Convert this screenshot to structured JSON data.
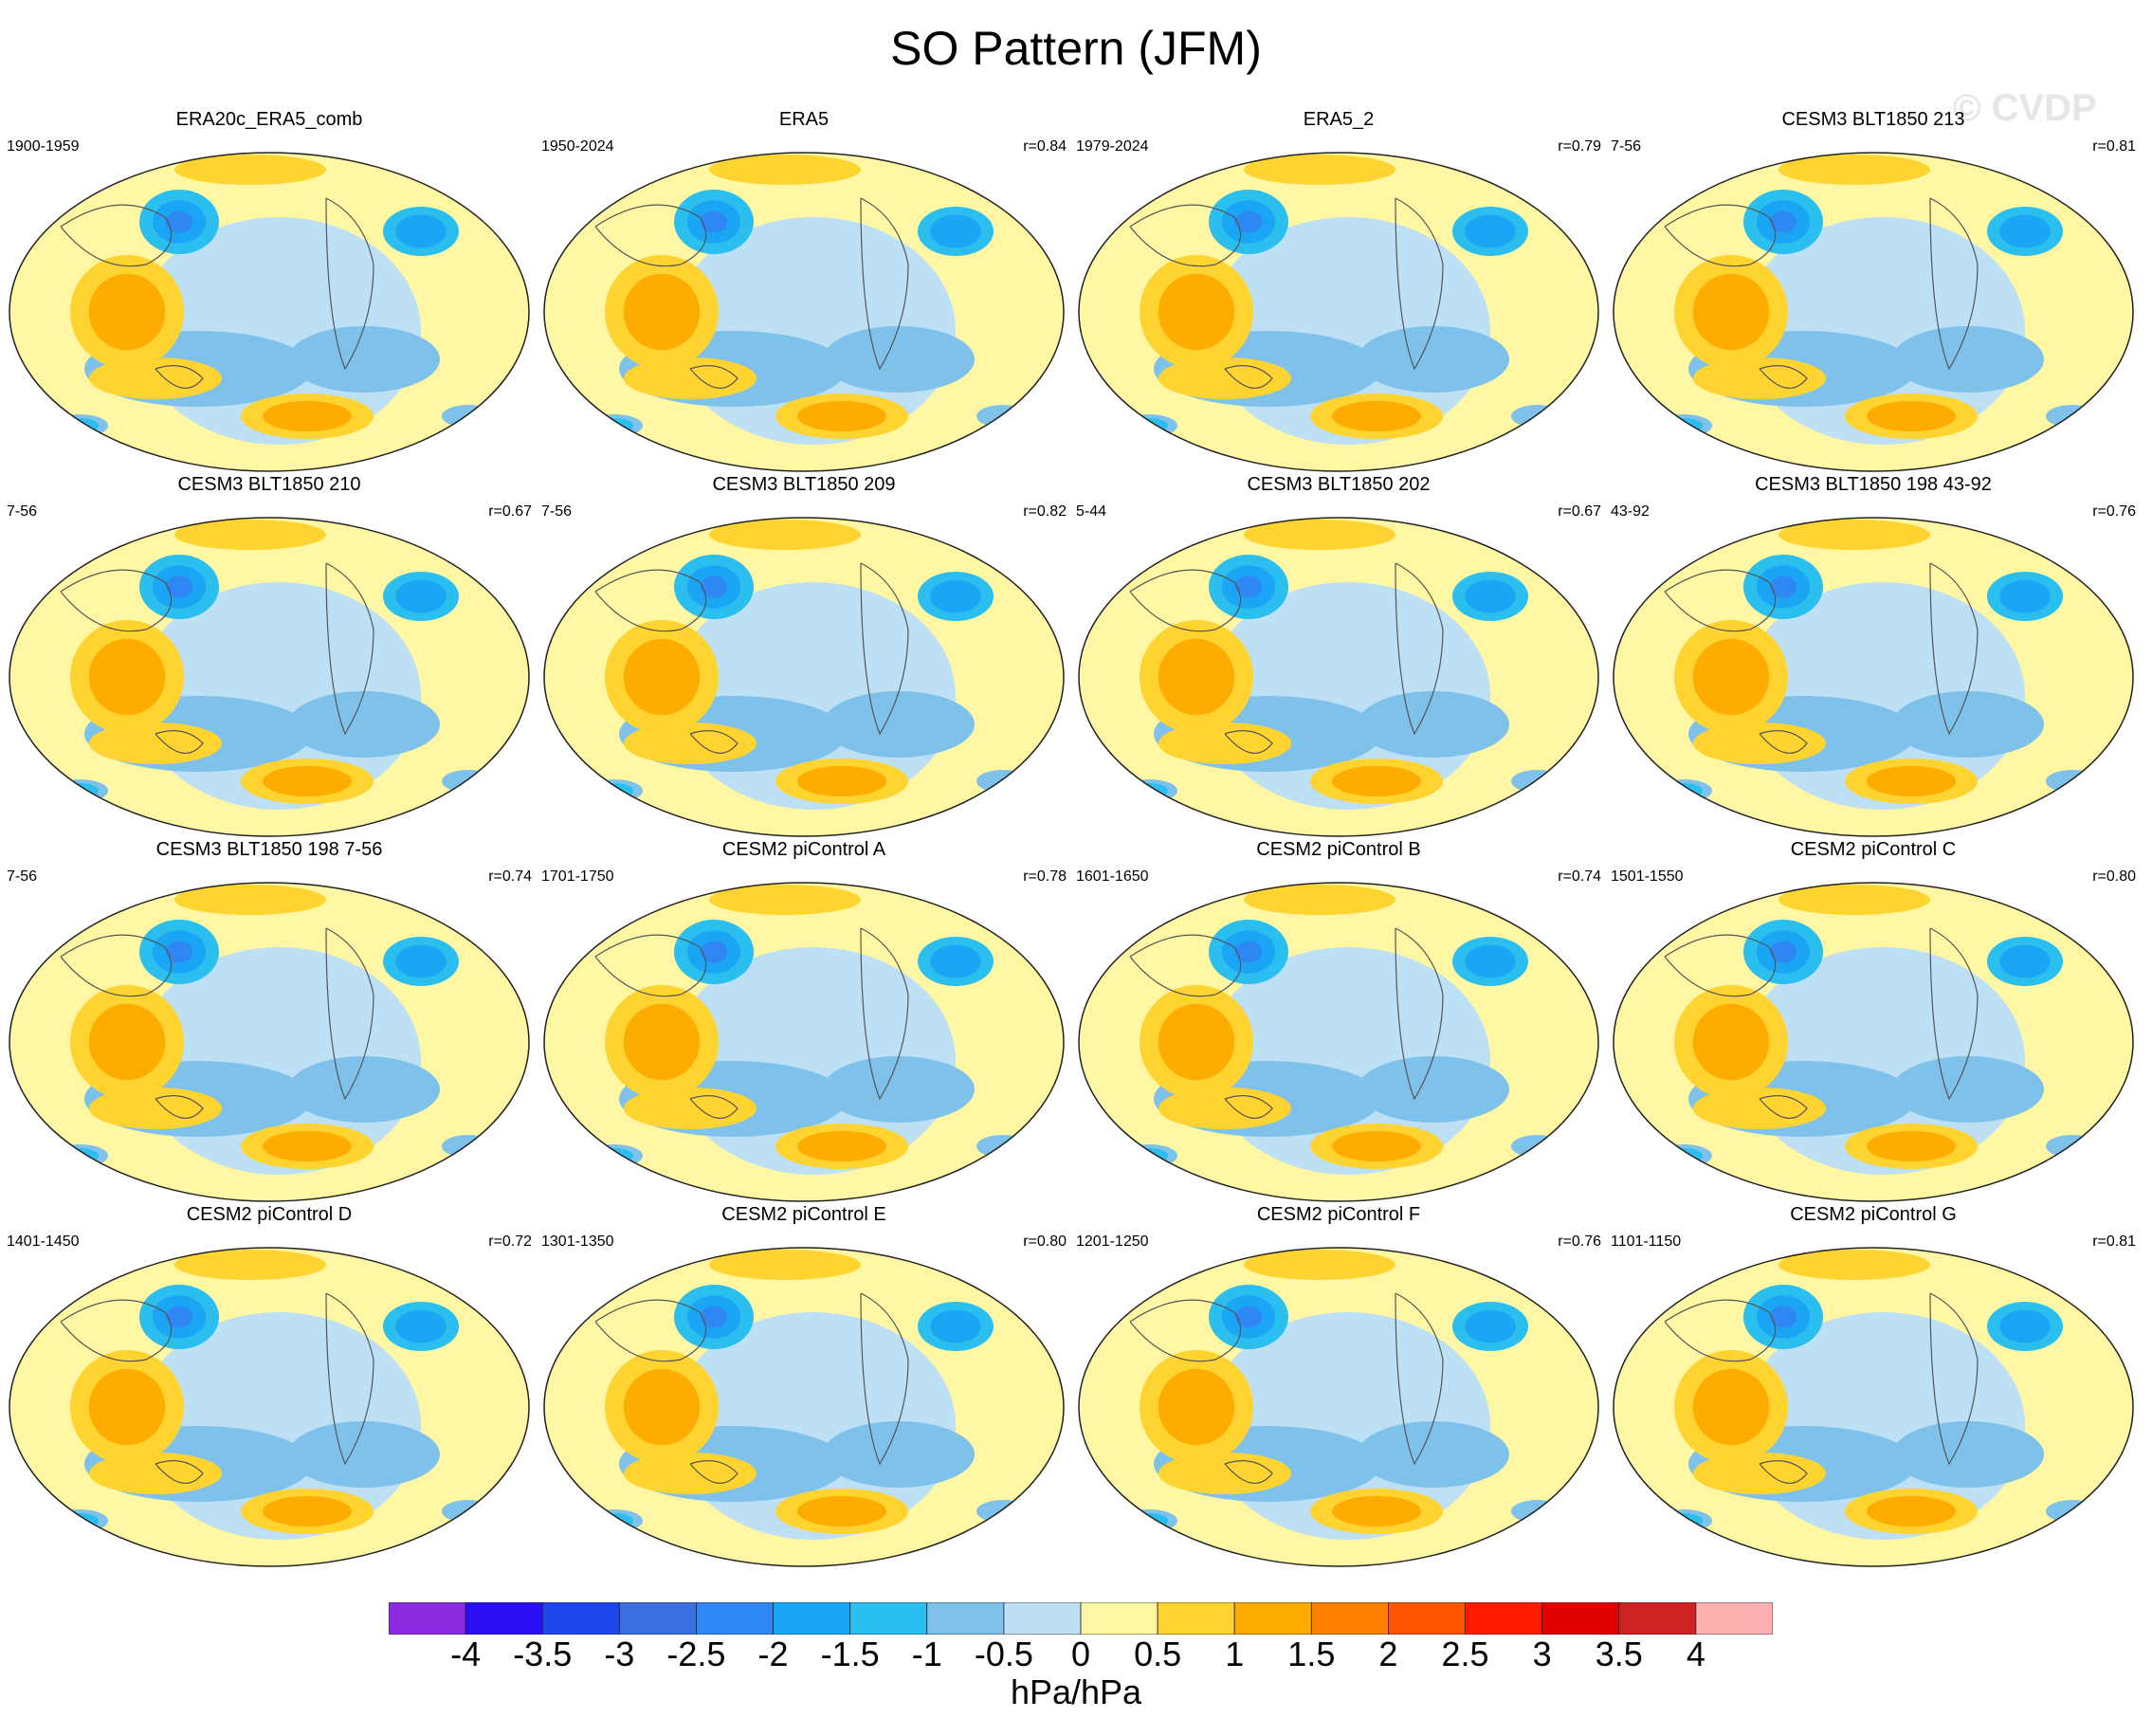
{
  "title": "SO Pattern (JFM)",
  "watermark": "© CVDP",
  "colorbar": {
    "levels": [
      "-4",
      "-3.5",
      "-3",
      "-2.5",
      "-2",
      "-1.5",
      "-1",
      "-0.5",
      "0",
      "0.5",
      "1",
      "1.5",
      "2",
      "2.5",
      "3",
      "3.5",
      "4"
    ],
    "colors": [
      "#8a2be2",
      "#2a0ff5",
      "#1e46ea",
      "#3a6fe0",
      "#2f87f3",
      "#1aa6f4",
      "#2bbff0",
      "#7ec1ea",
      "#bde0f5",
      "#fff7a3",
      "#ffd330",
      "#ffac00",
      "#ff8000",
      "#ff5500",
      "#ff1a00",
      "#e00000",
      "#cc2222",
      "#ffb0b0"
    ],
    "units": "hPa/hPa"
  },
  "panels": [
    {
      "title": "ERA20c_ERA5_comb",
      "left": "1900-1959",
      "right": ""
    },
    {
      "title": "ERA5",
      "left": "1950-2024",
      "right": "r=0.84"
    },
    {
      "title": "ERA5_2",
      "left": "1979-2024",
      "right": "r=0.79"
    },
    {
      "title": "CESM3 BLT1850 213",
      "left": "7-56",
      "right": "r=0.81"
    },
    {
      "title": "CESM3 BLT1850 210",
      "left": "7-56",
      "right": "r=0.67"
    },
    {
      "title": "CESM3 BLT1850 209",
      "left": "7-56",
      "right": "r=0.82"
    },
    {
      "title": "CESM3 BLT1850 202",
      "left": "5-44",
      "right": "r=0.67"
    },
    {
      "title": "CESM3 BLT1850 198 43-92",
      "left": "43-92",
      "right": "r=0.76"
    },
    {
      "title": "CESM3 BLT1850 198 7-56",
      "left": "7-56",
      "right": "r=0.74"
    },
    {
      "title": "CESM2 piControl A",
      "left": "1701-1750",
      "right": "r=0.78"
    },
    {
      "title": "CESM2 piControl B",
      "left": "1601-1650",
      "right": "r=0.74"
    },
    {
      "title": "CESM2 piControl C",
      "left": "1501-1550",
      "right": "r=0.80"
    },
    {
      "title": "CESM2 piControl D",
      "left": "1401-1450",
      "right": "r=0.72"
    },
    {
      "title": "CESM2 piControl E",
      "left": "1301-1350",
      "right": "r=0.80"
    },
    {
      "title": "CESM2 piControl F",
      "left": "1201-1250",
      "right": "r=0.76"
    },
    {
      "title": "CESM2 piControl G",
      "left": "1101-1150",
      "right": "r=0.81"
    }
  ]
}
